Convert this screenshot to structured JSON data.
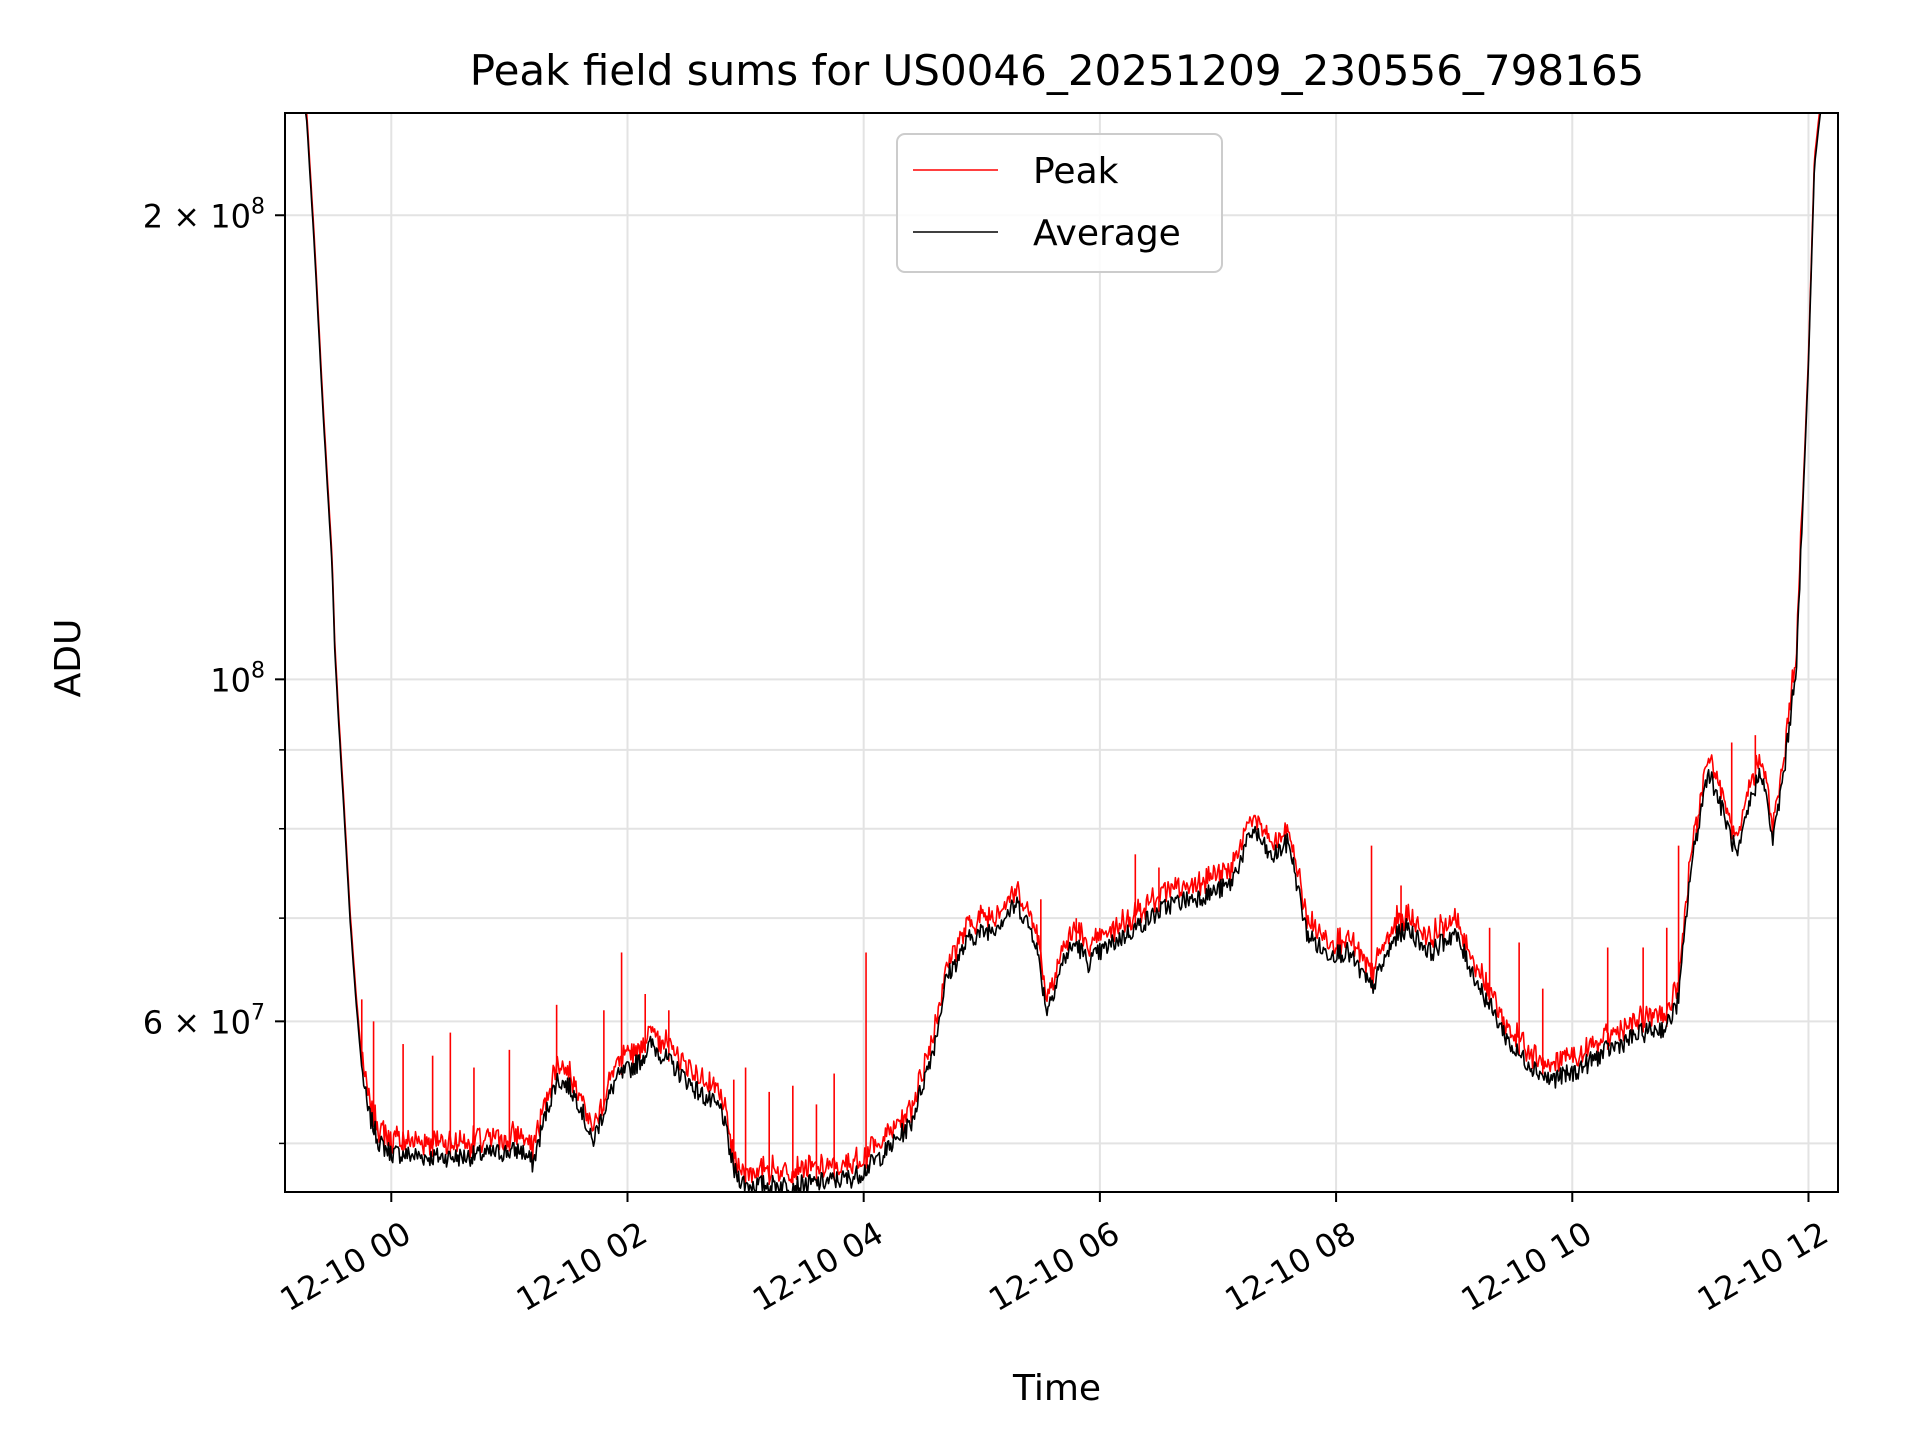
{
  "chart_data": {
    "type": "line",
    "title": "Peak field sums for US0046_20251209_230556_798165",
    "xlabel": "Time",
    "ylabel": "ADU",
    "x_unit": "hours since 12-10 00:00",
    "x_range": [
      -0.9,
      12.25
    ],
    "y_scale": "log",
    "y_range": [
      46500000,
      233000000
    ],
    "grid": true,
    "legend_location": "upper center",
    "x_ticks": [
      {
        "value": 0,
        "label": "12-10 00"
      },
      {
        "value": 2,
        "label": "12-10 02"
      },
      {
        "value": 4,
        "label": "12-10 04"
      },
      {
        "value": 6,
        "label": "12-10 06"
      },
      {
        "value": 8,
        "label": "12-10 08"
      },
      {
        "value": 10,
        "label": "12-10 10"
      },
      {
        "value": 12,
        "label": "12-10 12"
      }
    ],
    "y_major_ticks": [
      {
        "value": 60000000,
        "base": "6 × 10",
        "exp": "7"
      },
      {
        "value": 100000000,
        "base": "10",
        "exp": "8"
      },
      {
        "value": 200000000,
        "base": "2 × 10",
        "exp": "8"
      }
    ],
    "y_minor_ticks": [
      50000000,
      70000000,
      80000000,
      90000000
    ],
    "series": [
      {
        "name": "Peak",
        "color": "#ff0000",
        "offset": 1.012,
        "spikes": [
          [
            -0.25,
            62000000
          ],
          [
            -0.15,
            60000000
          ],
          [
            0.1,
            58000000
          ],
          [
            0.35,
            57000000
          ],
          [
            0.5,
            59000000
          ],
          [
            0.7,
            56000000
          ],
          [
            1.0,
            57500000
          ],
          [
            1.4,
            61500000
          ],
          [
            1.8,
            61000000
          ],
          [
            1.95,
            66500000
          ],
          [
            2.15,
            62500000
          ],
          [
            2.35,
            61000000
          ],
          [
            2.9,
            55000000
          ],
          [
            3.0,
            56000000
          ],
          [
            3.2,
            54000000
          ],
          [
            3.4,
            54500000
          ],
          [
            3.6,
            53000000
          ],
          [
            3.75,
            55500000
          ],
          [
            4.02,
            66500000
          ],
          [
            5.5,
            72000000
          ],
          [
            5.8,
            70000000
          ],
          [
            6.3,
            77000000
          ],
          [
            6.5,
            75500000
          ],
          [
            8.3,
            78000000
          ],
          [
            8.55,
            73500000
          ],
          [
            9.3,
            69000000
          ],
          [
            9.55,
            67500000
          ],
          [
            9.75,
            63000000
          ],
          [
            10.3,
            67000000
          ],
          [
            10.6,
            67000000
          ],
          [
            10.8,
            69000000
          ],
          [
            10.9,
            78000000
          ],
          [
            11.05,
            80000000
          ],
          [
            11.35,
            91000000
          ],
          [
            11.55,
            92000000
          ]
        ]
      },
      {
        "name": "Average",
        "color": "#000000",
        "offset": 1.0,
        "points": [
          [
            -0.9,
            233000000
          ],
          [
            -0.72,
            233000000
          ],
          [
            -0.7,
            220000000
          ],
          [
            -0.65,
            190000000
          ],
          [
            -0.58,
            150000000
          ],
          [
            -0.5,
            118000000
          ],
          [
            -0.48,
            105000000
          ],
          [
            -0.45,
            95000000
          ],
          [
            -0.4,
            82000000
          ],
          [
            -0.35,
            70000000
          ],
          [
            -0.3,
            62000000
          ],
          [
            -0.25,
            56000000
          ],
          [
            -0.2,
            52500000
          ],
          [
            -0.1,
            50000000
          ],
          [
            0.0,
            49300000
          ],
          [
            0.3,
            49000000
          ],
          [
            0.6,
            49000000
          ],
          [
            0.9,
            49300000
          ],
          [
            1.1,
            49500000
          ],
          [
            1.2,
            48500000
          ],
          [
            1.3,
            52000000
          ],
          [
            1.4,
            55000000
          ],
          [
            1.5,
            54500000
          ],
          [
            1.6,
            53000000
          ],
          [
            1.7,
            50000000
          ],
          [
            1.8,
            52500000
          ],
          [
            1.9,
            55000000
          ],
          [
            2.1,
            56500000
          ],
          [
            2.2,
            58000000
          ],
          [
            2.35,
            56500000
          ],
          [
            2.6,
            54000000
          ],
          [
            2.8,
            52500000
          ],
          [
            2.9,
            48000000
          ],
          [
            3.0,
            47000000
          ],
          [
            3.5,
            47000000
          ],
          [
            3.9,
            47500000
          ],
          [
            4.0,
            48000000
          ],
          [
            4.2,
            49500000
          ],
          [
            4.4,
            51500000
          ],
          [
            4.6,
            58000000
          ],
          [
            4.7,
            64000000
          ],
          [
            4.9,
            68000000
          ],
          [
            5.1,
            69000000
          ],
          [
            5.3,
            71500000
          ],
          [
            5.45,
            68000000
          ],
          [
            5.55,
            61000000
          ],
          [
            5.7,
            66000000
          ],
          [
            5.8,
            67500000
          ],
          [
            5.9,
            65500000
          ],
          [
            6.0,
            66500000
          ],
          [
            6.3,
            69000000
          ],
          [
            6.6,
            71500000
          ],
          [
            6.9,
            72500000
          ],
          [
            7.1,
            73500000
          ],
          [
            7.3,
            80000000
          ],
          [
            7.45,
            76500000
          ],
          [
            7.6,
            78500000
          ],
          [
            7.75,
            68500000
          ],
          [
            7.9,
            66500000
          ],
          [
            8.1,
            66500000
          ],
          [
            8.3,
            63000000
          ],
          [
            8.5,
            68000000
          ],
          [
            8.6,
            69000000
          ],
          [
            8.8,
            66500000
          ],
          [
            9.0,
            68500000
          ],
          [
            9.2,
            63500000
          ],
          [
            9.5,
            57500000
          ],
          [
            9.8,
            55000000
          ],
          [
            10.0,
            55500000
          ],
          [
            10.3,
            57500000
          ],
          [
            10.6,
            59000000
          ],
          [
            10.8,
            59500000
          ],
          [
            10.9,
            62000000
          ],
          [
            11.0,
            75000000
          ],
          [
            11.15,
            87500000
          ],
          [
            11.3,
            81000000
          ],
          [
            11.4,
            76500000
          ],
          [
            11.5,
            83000000
          ],
          [
            11.6,
            87500000
          ],
          [
            11.7,
            78500000
          ],
          [
            11.8,
            88000000
          ],
          [
            11.9,
            103000000
          ],
          [
            12.0,
            160000000
          ],
          [
            12.05,
            215000000
          ],
          [
            12.1,
            233000000
          ],
          [
            12.25,
            233000000
          ]
        ]
      }
    ]
  }
}
